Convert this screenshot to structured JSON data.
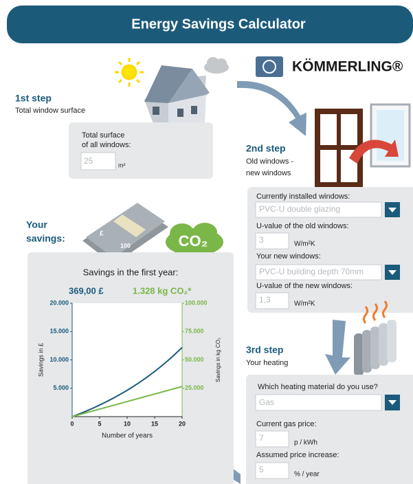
{
  "header": {
    "title": "Energy Savings Calculator"
  },
  "brand": "KÖMMERLING®",
  "step1": {
    "title": "1st step",
    "subtitle": "Total window surface",
    "field": {
      "label": [
        "Total surface",
        "of all windows:"
      ],
      "value": "25",
      "unit": "m²"
    }
  },
  "step2": {
    "title": "2nd step",
    "subtitle": [
      "Old windows -",
      "new windows"
    ],
    "fields": [
      {
        "label": "Currently installed windows:",
        "value": "PVC-U double glazing"
      },
      {
        "label": "U-value of the old windows:",
        "value": "3",
        "unit": "W/m²K"
      },
      {
        "label": "Your new windows:",
        "value": "PVC-U building depth 70mm"
      },
      {
        "label": "U-value of the new windows:",
        "value": "1,3",
        "unit": "W/m²K"
      }
    ]
  },
  "step3": {
    "title": "3rd step",
    "subtitle": "Your heating",
    "fields": [
      {
        "label": "Which heating material do you use?",
        "value": "Gas"
      },
      {
        "label": "Current gas price:",
        "value": "7",
        "unit": "p / kWh"
      },
      {
        "label": "Assumed price increase:",
        "value": "5",
        "unit": "% / year"
      }
    ]
  },
  "savings": {
    "title": [
      "Your",
      "savings:"
    ],
    "bill_labels": [
      "£",
      "100"
    ],
    "co2_icon": "CO₂",
    "first_year_title": "Savings in the first year:",
    "money": "369,00 £",
    "co2": "1.328 kg CO₂*"
  },
  "chart_data": {
    "type": "line",
    "x_label": "Number of years",
    "y_label": "Savings in £",
    "y2_label": "Savings in kg CO₂",
    "x": [
      0,
      1,
      2,
      3,
      4,
      5,
      6,
      7,
      8,
      9,
      10,
      11,
      12,
      13,
      14,
      15,
      16,
      17,
      18,
      19,
      20
    ],
    "xlim": [
      0,
      20
    ],
    "xticks": [
      0,
      5,
      10,
      15,
      20
    ],
    "ylim": [
      0,
      20000
    ],
    "yticks": [
      {
        "value": 5000,
        "label": "5.000"
      },
      {
        "value": 10000,
        "label": "10.000"
      },
      {
        "value": 15000,
        "label": "15.000"
      },
      {
        "value": 20000,
        "label": "20.000"
      }
    ],
    "y2lim": [
      0,
      100000
    ],
    "y2ticks": [
      {
        "value": 25000,
        "label": "25.000"
      },
      {
        "value": 50000,
        "label": "50.000"
      },
      {
        "value": 75000,
        "label": "75.000"
      },
      {
        "value": 100000,
        "label": "100.000"
      }
    ],
    "series": [
      {
        "color": "#1b5a7a",
        "values": [
          0,
          369,
          756,
          1163,
          1590,
          2039,
          2511,
          3006,
          3524,
          4069,
          4641,
          5243,
          5873,
          6534,
          7230,
          7960,
          8729,
          9535,
          10381,
          11271,
          12202
        ]
      },
      {
        "color": "#7ab648",
        "axis": "y2",
        "values": [
          0,
          1328,
          2656,
          3984,
          5312,
          6640,
          7968,
          9296,
          10624,
          11952,
          13280,
          14608,
          15936,
          17264,
          18592,
          19920,
          21248,
          22576,
          23904,
          25232,
          26560
        ]
      }
    ]
  }
}
